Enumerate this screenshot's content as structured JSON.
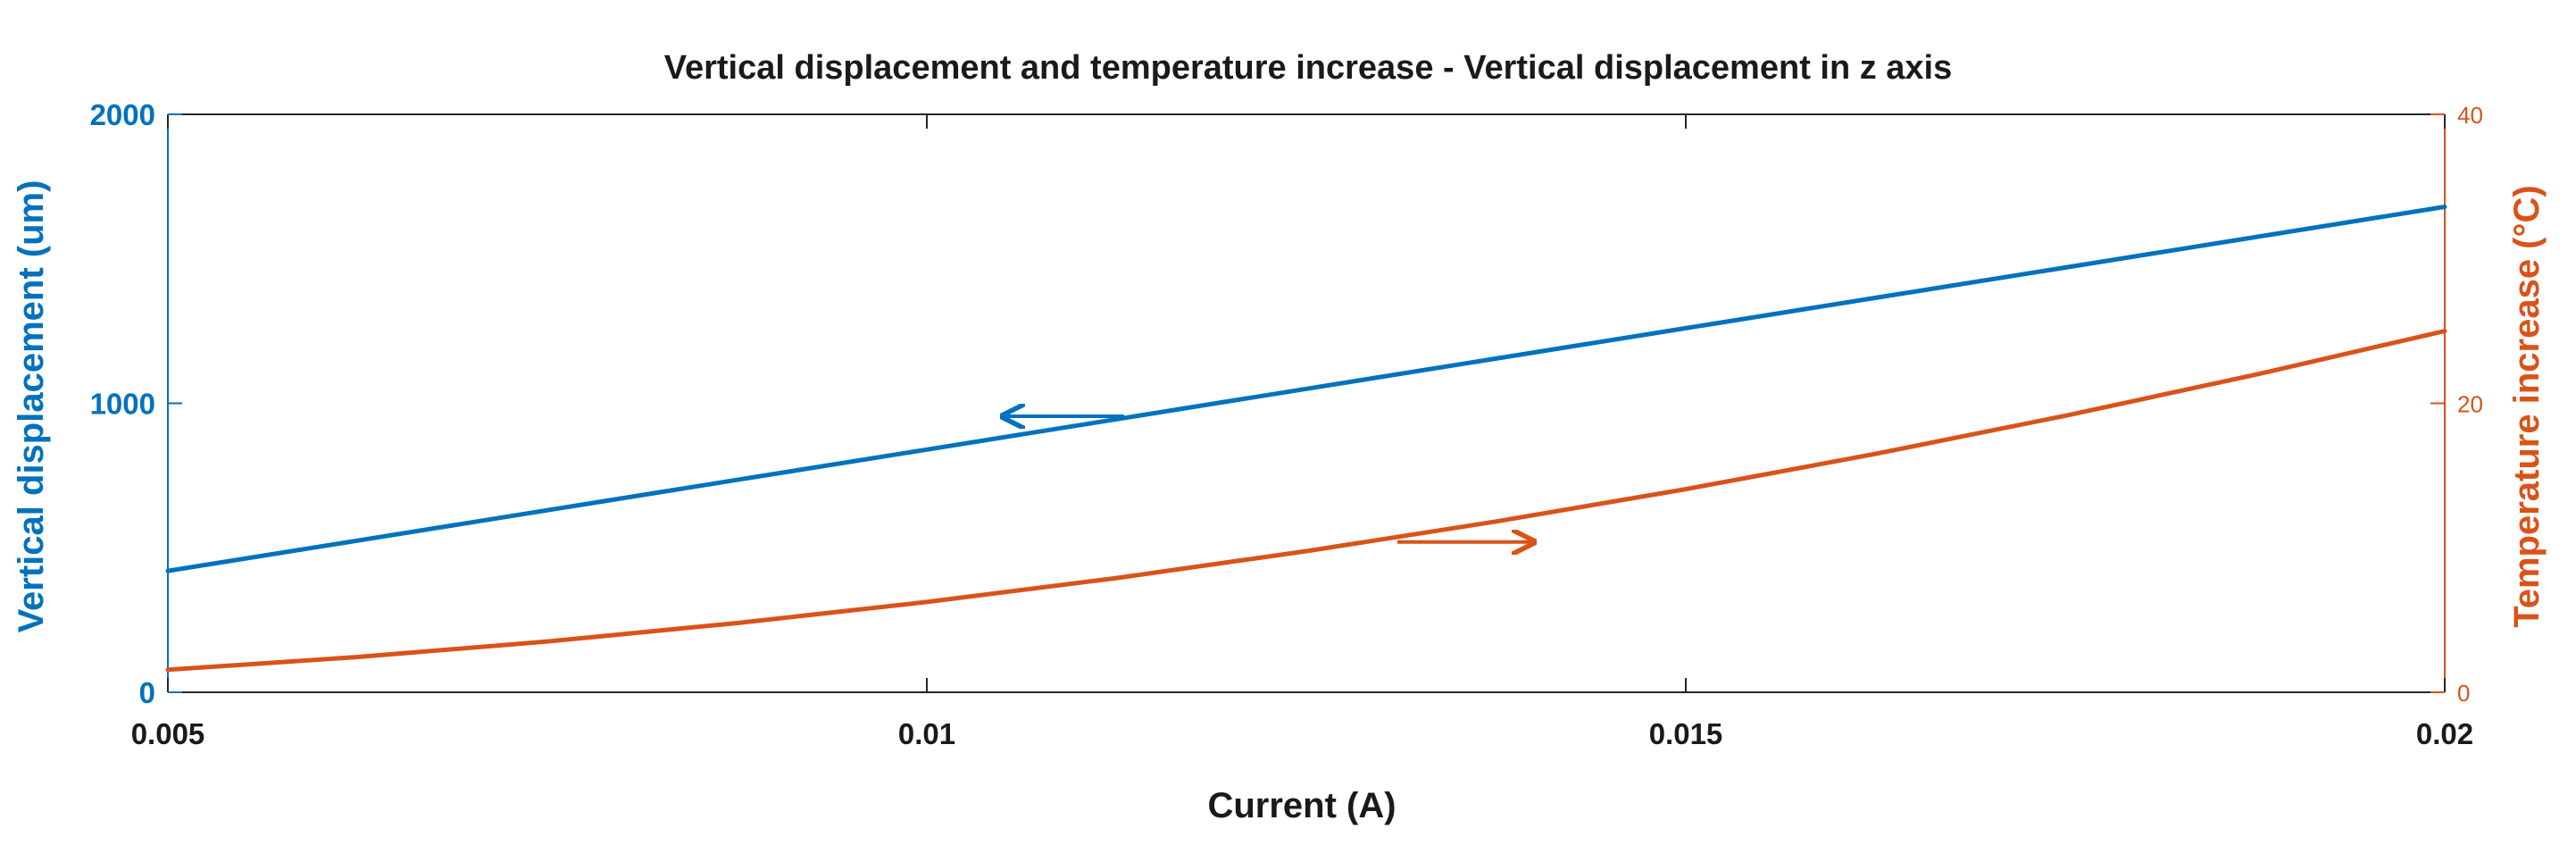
{
  "chart_data": {
    "type": "line",
    "title": "Vertical displacement and temperature increase - Vertical displacement in z axis",
    "xlabel": "Current (A)",
    "ylabel_left": "Vertical displacement (um)",
    "ylabel_right": "Temperature increase (°C)",
    "xlim": [
      0.005,
      0.02
    ],
    "ylim_left": [
      0,
      2000
    ],
    "ylim_right": [
      0,
      40
    ],
    "x_ticks": [
      "0.005",
      "0.01",
      "0.015",
      "0.02"
    ],
    "y_left_ticks": [
      "0",
      "1000",
      "2000"
    ],
    "y_right_ticks": [
      "0",
      "20",
      "40"
    ],
    "grid": false,
    "colors": {
      "left": "#0072BD",
      "right": "#D95319",
      "axis": "#262626"
    },
    "series": [
      {
        "name": "Vertical displacement",
        "axis": "left",
        "x": [
          0.005,
          0.00625,
          0.0075,
          0.00875,
          0.01,
          0.01125,
          0.0125,
          0.01375,
          0.015,
          0.01625,
          0.0175,
          0.01875,
          0.02
        ],
        "values": [
          420,
          525,
          630,
          735,
          840,
          945,
          1050,
          1155,
          1260,
          1365,
          1470,
          1575,
          1680
        ]
      },
      {
        "name": "Temperature increase",
        "axis": "right",
        "x": [
          0.005,
          0.00625,
          0.0075,
          0.00875,
          0.01,
          0.01125,
          0.0125,
          0.01375,
          0.015,
          0.01625,
          0.0175,
          0.01875,
          0.02
        ],
        "values": [
          1.56,
          2.44,
          3.52,
          4.79,
          6.25,
          7.91,
          9.77,
          11.82,
          14.06,
          16.5,
          19.14,
          21.97,
          25.0
        ]
      }
    ],
    "annotations": [
      {
        "type": "arrow",
        "axis": "left",
        "direction": "left",
        "from": [
          0.0113,
          955
        ],
        "to": [
          0.0105,
          955
        ]
      },
      {
        "type": "arrow",
        "axis": "right",
        "direction": "right",
        "from": [
          0.0131,
          10.4
        ],
        "to": [
          0.014,
          10.4
        ]
      }
    ]
  }
}
